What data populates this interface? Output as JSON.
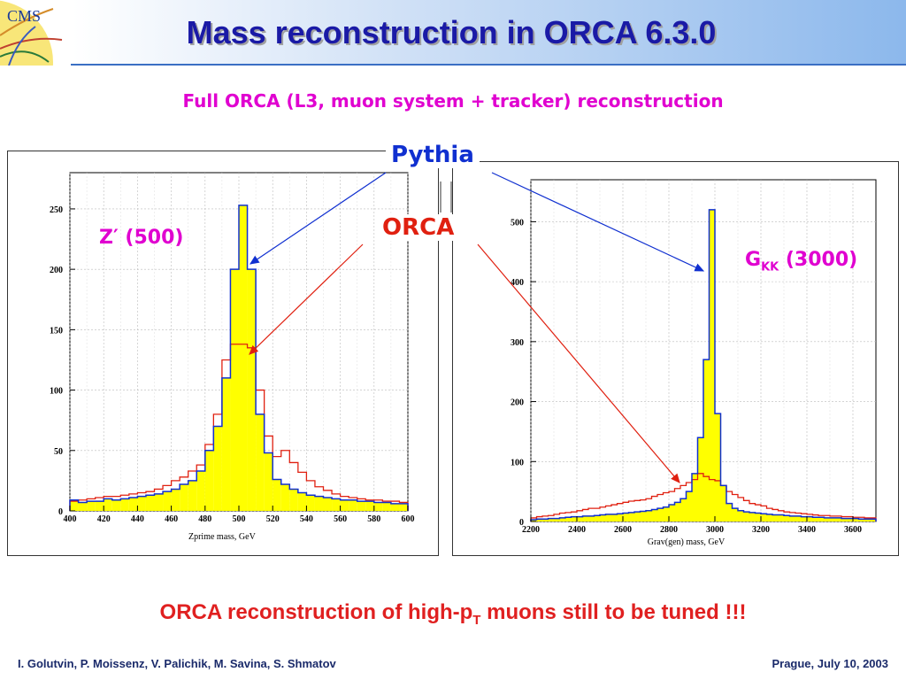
{
  "slide": {
    "title": "Mass reconstruction in ORCA  6.3.0",
    "subtitle": "Full ORCA (L3, muon system + tracker) reconstruction",
    "logo_text": "CMS",
    "pythia_label": "Pythia",
    "orca_label": "ORCA",
    "zprime_label": "Z′ (500)",
    "gkk_label_main": "G",
    "gkk_label_sub": "KK",
    "gkk_label_tail": " (3000)",
    "conclusion_pre": "ORCA reconstruction of high-p",
    "conclusion_sub": "T",
    "conclusion_post": " muons still to be tuned !!!",
    "footer_left": "I. Golutvin, P. Moissenz, V. Palichik, M. Savina, S. Shmatov",
    "footer_right": "Prague, July 10,  2003"
  },
  "colors": {
    "pythia": "#1030d0",
    "orca": "#e02010",
    "fill": "#ffff00",
    "title": "#1a1aa6",
    "magenta": "#e000d0"
  },
  "chart_data": [
    {
      "type": "histogram",
      "xlabel": "Zprime mass,    GeV",
      "xlim": [
        400,
        600
      ],
      "ylim": [
        0,
        280
      ],
      "xticks": [
        400,
        420,
        440,
        460,
        480,
        500,
        520,
        540,
        560,
        580,
        600
      ],
      "yticks": [
        0,
        50,
        100,
        150,
        200,
        250
      ],
      "bin_edges": [
        400,
        405,
        410,
        415,
        420,
        425,
        430,
        435,
        440,
        445,
        450,
        455,
        460,
        465,
        470,
        475,
        480,
        485,
        490,
        495,
        500,
        505,
        510,
        515,
        520,
        525,
        530,
        535,
        540,
        545,
        550,
        555,
        560,
        565,
        570,
        575,
        580,
        585,
        590,
        595,
        600
      ],
      "series": [
        {
          "values": [
            9,
            7,
            8,
            8,
            10,
            9,
            10,
            11,
            12,
            13,
            14,
            16,
            18,
            22,
            25,
            33,
            50,
            70,
            110,
            200,
            253,
            200,
            80,
            48,
            26,
            22,
            18,
            15,
            13,
            12,
            11,
            10,
            9,
            9,
            8,
            8,
            7,
            7,
            6,
            6
          ]
        },
        {
          "values": [
            8,
            9,
            10,
            11,
            12,
            12,
            13,
            14,
            15,
            16,
            18,
            21,
            25,
            28,
            33,
            38,
            55,
            80,
            125,
            138,
            138,
            135,
            100,
            62,
            45,
            50,
            40,
            32,
            25,
            20,
            17,
            14,
            12,
            11,
            10,
            9,
            9,
            8,
            8,
            7
          ]
        }
      ]
    },
    {
      "type": "histogram",
      "xlabel": "Grav(gen) mass,    GeV",
      "xlim": [
        2200,
        3700
      ],
      "ylim": [
        0,
        570
      ],
      "xticks": [
        2200,
        2400,
        2600,
        2800,
        3000,
        3200,
        3400,
        3600
      ],
      "yticks": [
        0,
        100,
        200,
        300,
        400,
        500
      ],
      "bin_edges": [
        2200,
        2225,
        2250,
        2275,
        2300,
        2325,
        2350,
        2375,
        2400,
        2425,
        2450,
        2475,
        2500,
        2525,
        2550,
        2575,
        2600,
        2625,
        2650,
        2675,
        2700,
        2725,
        2750,
        2775,
        2800,
        2825,
        2850,
        2875,
        2900,
        2925,
        2950,
        2975,
        3000,
        3025,
        3050,
        3075,
        3100,
        3125,
        3150,
        3175,
        3200,
        3225,
        3250,
        3275,
        3300,
        3325,
        3350,
        3375,
        3400,
        3425,
        3450,
        3475,
        3500,
        3525,
        3550,
        3575,
        3600,
        3625,
        3650,
        3675,
        3700
      ],
      "series": [
        {
          "values": [
            3,
            4,
            4,
            5,
            5,
            6,
            7,
            8,
            8,
            9,
            9,
            10,
            11,
            12,
            12,
            13,
            14,
            15,
            16,
            17,
            18,
            20,
            22,
            24,
            28,
            32,
            38,
            50,
            80,
            140,
            270,
            520,
            180,
            60,
            30,
            22,
            18,
            16,
            15,
            14,
            13,
            12,
            11,
            11,
            10,
            9,
            9,
            8,
            8,
            7,
            7,
            6,
            6,
            6,
            5,
            5,
            5,
            4,
            4,
            4
          ]
        },
        {
          "values": [
            6,
            8,
            9,
            10,
            12,
            14,
            15,
            16,
            18,
            20,
            22,
            22,
            24,
            26,
            28,
            30,
            32,
            34,
            35,
            36,
            38,
            42,
            45,
            48,
            50,
            55,
            60,
            65,
            70,
            80,
            75,
            70,
            68,
            60,
            50,
            45,
            40,
            35,
            30,
            28,
            26,
            22,
            20,
            18,
            16,
            15,
            14,
            13,
            12,
            11,
            10,
            10,
            9,
            9,
            8,
            8,
            7,
            7,
            6,
            6
          ]
        }
      ]
    }
  ]
}
